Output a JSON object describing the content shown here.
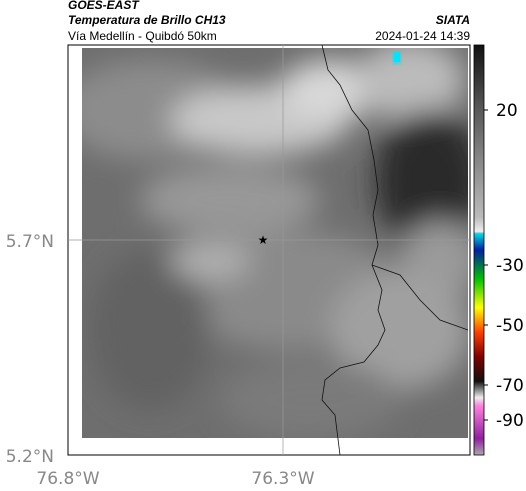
{
  "header": {
    "title": "GOES-EAST",
    "subtitle": "Temperatura de Brillo CH13",
    "source": "SIATA",
    "region": "Vía Medellín - Quibdó 50km",
    "datetime": "2024-01-24 14:39"
  },
  "axes": {
    "lat_labels": [
      "5.7°N",
      "5.2°N"
    ],
    "lon_labels": [
      "76.8°W",
      "76.3°W"
    ]
  },
  "colorbar": {
    "ticks": [
      20,
      -30,
      -50,
      -70,
      -90
    ]
  }
}
